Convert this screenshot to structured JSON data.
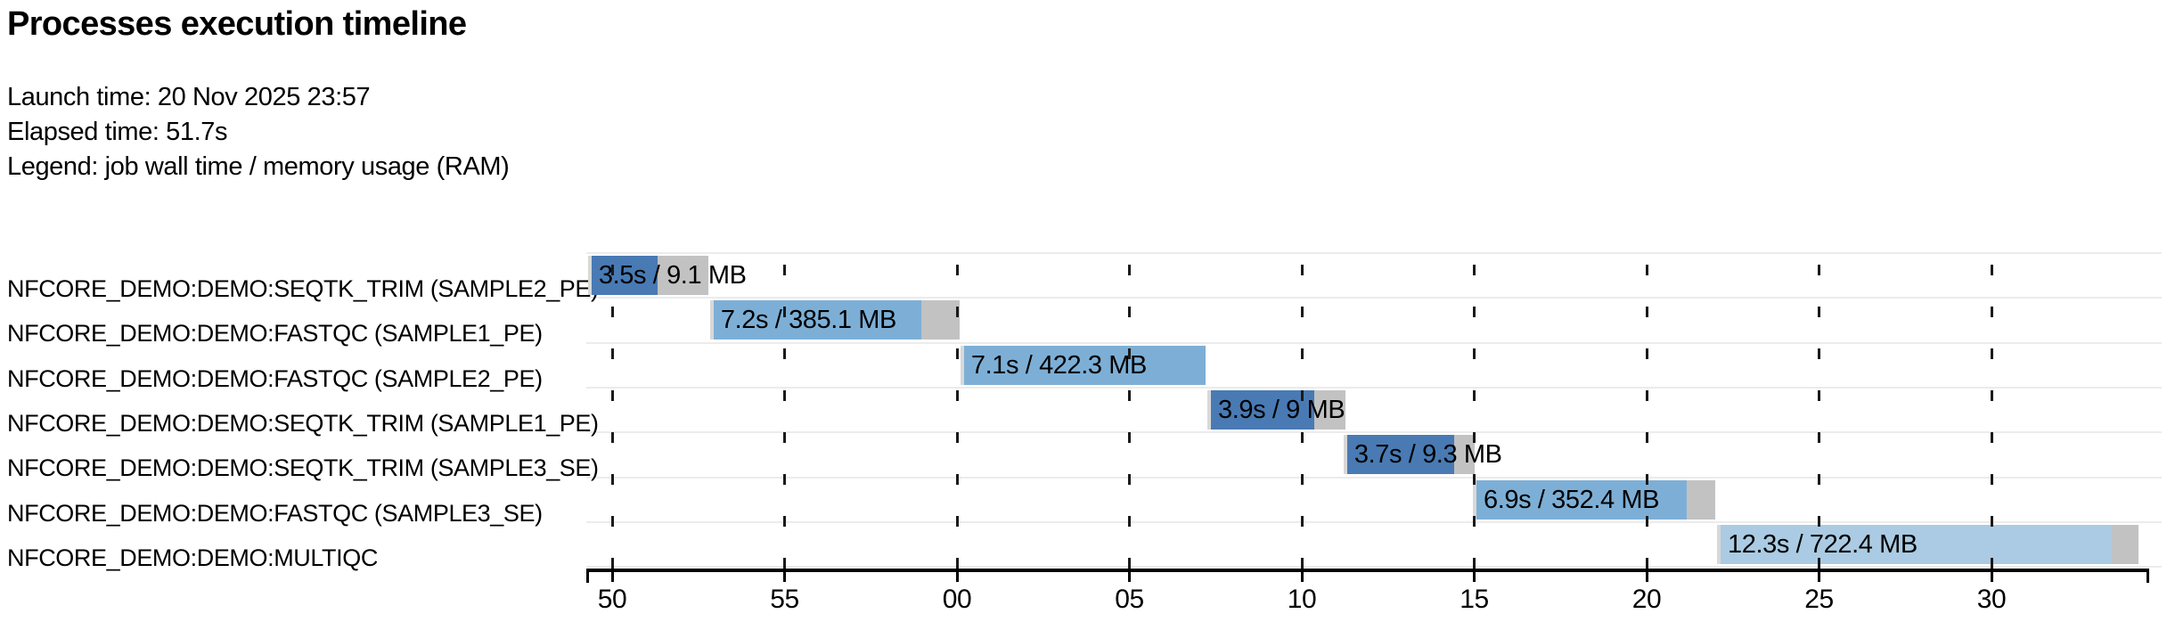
{
  "header": {
    "title": "Processes execution timeline",
    "launch_label": "Launch time: 20 Nov 2025 23:57",
    "elapsed_label": "Elapsed time: 51.7s",
    "legend_label": "Legend: job wall time / memory usage (RAM)"
  },
  "colors": {
    "process": {
      "SEQTK_TRIM": "#497ab3",
      "FASTQC": "#7dafd6",
      "MULTIQC": "#aacbe3"
    },
    "bar_head_gray": "#d8d8d8",
    "bar_tail_gray": "#c2c2c2",
    "row_separator": "#ececec",
    "grid_dash": "#1a1a1a",
    "axis": "#000000",
    "text": "#000000",
    "background": "#ffffff"
  },
  "chart_data": {
    "type": "gantt",
    "title": "Processes execution timeline",
    "launch_time": "20 Nov 2025 23:57",
    "elapsed_time_s": 51.7,
    "legend": "job wall time / memory usage (RAM)",
    "x_axis": {
      "unit": "clock seconds; labels wrap 55 -> 00 at the minute boundary",
      "domain_s": [
        49.25,
        94.52
      ],
      "grid": true,
      "ticks": [
        {
          "t": 50,
          "label": "50"
        },
        {
          "t": 55,
          "label": "55"
        },
        {
          "t": 60,
          "label": "00"
        },
        {
          "t": 65,
          "label": "05"
        },
        {
          "t": 70,
          "label": "10"
        },
        {
          "t": 75,
          "label": "15"
        },
        {
          "t": 80,
          "label": "20"
        },
        {
          "t": 85,
          "label": "25"
        },
        {
          "t": 90,
          "label": "30"
        }
      ]
    },
    "rows": [
      {
        "name": "NFCORE_DEMO:DEMO:SEQTK_TRIM (SAMPLE2_PE)",
        "process": "SEQTK_TRIM",
        "bar_label": "3.5s / 9.1 MB",
        "wall_time_s": 3.5,
        "memory": "9.1 MB",
        "start_s": 49.3,
        "run_end_s": 51.32,
        "end_s": 52.79
      },
      {
        "name": "NFCORE_DEMO:DEMO:FASTQC (SAMPLE1_PE)",
        "process": "FASTQC",
        "bar_label": "7.2s / 385.1 MB",
        "wall_time_s": 7.2,
        "memory": "385.1 MB",
        "start_s": 52.84,
        "run_end_s": 58.96,
        "end_s": 60.07
      },
      {
        "name": "NFCORE_DEMO:DEMO:FASTQC (SAMPLE2_PE)",
        "process": "FASTQC",
        "bar_label": "7.1s / 422.3 MB",
        "wall_time_s": 7.1,
        "memory": "422.3 MB",
        "start_s": 60.1,
        "run_end_s": 67.21,
        "end_s": 67.21
      },
      {
        "name": "NFCORE_DEMO:DEMO:SEQTK_TRIM (SAMPLE1_PE)",
        "process": "SEQTK_TRIM",
        "bar_label": "3.9s / 9 MB",
        "wall_time_s": 3.9,
        "memory": "9 MB",
        "start_s": 67.26,
        "run_end_s": 70.36,
        "end_s": 71.26
      },
      {
        "name": "NFCORE_DEMO:DEMO:SEQTK_TRIM (SAMPLE3_SE)",
        "process": "SEQTK_TRIM",
        "bar_label": "3.7s / 9.3 MB",
        "wall_time_s": 3.7,
        "memory": "9.3 MB",
        "start_s": 71.21,
        "run_end_s": 74.42,
        "end_s": 75.01
      },
      {
        "name": "NFCORE_DEMO:DEMO:FASTQC (SAMPLE3_SE)",
        "process": "FASTQC",
        "bar_label": "6.9s / 352.4 MB",
        "wall_time_s": 6.9,
        "memory": "352.4 MB",
        "start_s": 74.96,
        "run_end_s": 81.17,
        "end_s": 81.99
      },
      {
        "name": "NFCORE_DEMO:DEMO:MULTIQC",
        "process": "MULTIQC",
        "bar_label": "12.3s / 722.4 MB",
        "wall_time_s": 12.3,
        "memory": "722.4 MB",
        "start_s": 82.04,
        "run_end_s": 93.49,
        "end_s": 94.26
      }
    ]
  }
}
